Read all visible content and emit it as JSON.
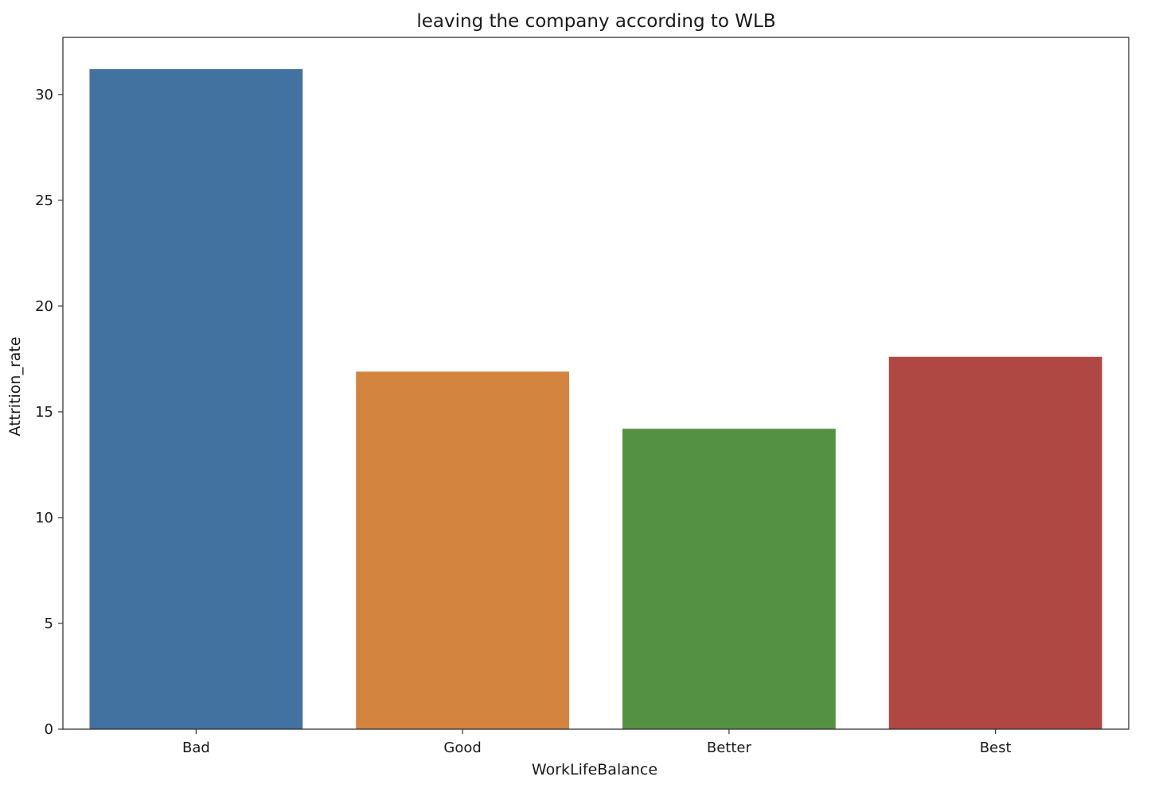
{
  "chart_data": {
    "type": "bar",
    "title": "leaving the company according to WLB",
    "xlabel": "WorkLifeBalance",
    "ylabel": "Attrition_rate",
    "categories": [
      "Bad",
      "Good",
      "Better",
      "Best"
    ],
    "values": [
      31.2,
      16.9,
      14.2,
      17.6
    ],
    "colors": [
      "#4272a0",
      "#d3843f",
      "#559143",
      "#af4742"
    ],
    "ylim": [
      0,
      32.7
    ],
    "yticks": [
      0,
      5,
      10,
      15,
      20,
      25,
      30
    ],
    "ytick_labels": [
      "0",
      "5",
      "10",
      "15",
      "20",
      "25",
      "30"
    ],
    "grid": false,
    "legend": false
  }
}
